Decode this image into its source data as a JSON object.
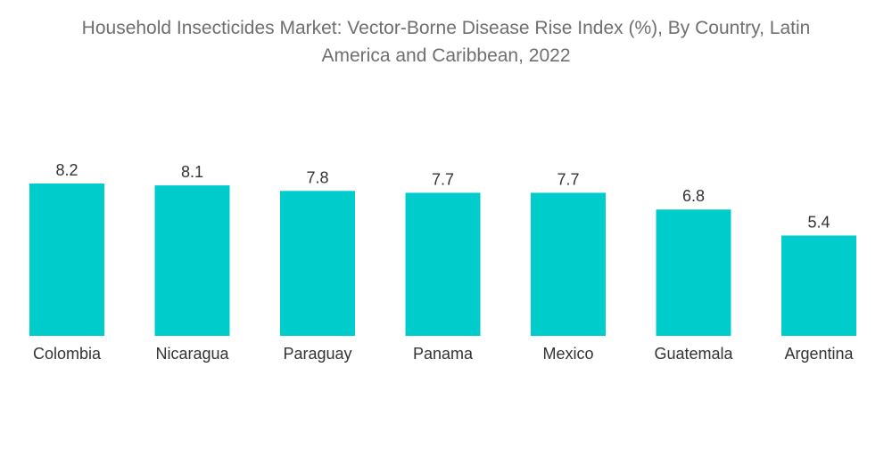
{
  "chart_data": {
    "type": "bar",
    "title_lines": [
      "Household Insecticides Market: Vector-Borne Disease Rise Index (%), By Country, Latin",
      "America and Caribbean, 2022"
    ],
    "categories": [
      "Colombia",
      "Nicaragua",
      "Paraguay",
      "Panama",
      "Mexico",
      "Guatemala",
      "Argentina"
    ],
    "values": [
      8.2,
      8.1,
      7.8,
      7.7,
      7.7,
      6.8,
      5.4
    ],
    "value_labels": [
      "8.2",
      "8.1",
      "7.8",
      "7.7",
      "7.7",
      "6.8",
      "5.4"
    ],
    "xlabel": "",
    "ylabel": "",
    "ylim": [
      0,
      8.2
    ],
    "grid": false,
    "legend": "none",
    "bar_color": "#00cccc"
  }
}
